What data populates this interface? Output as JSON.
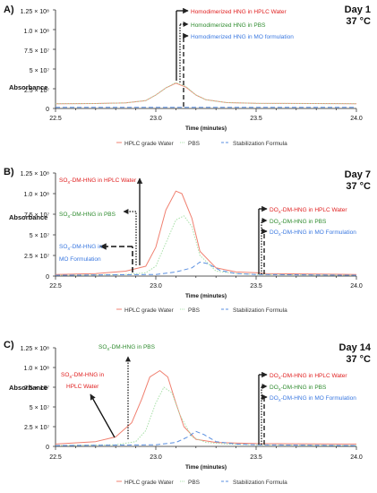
{
  "figure": {
    "x_axis_label": "Time (minutes)",
    "y_axis_label": "Absorbance",
    "legend_items": [
      {
        "label": "HPLC grade Water",
        "color": "#f08070",
        "dash": "solid"
      },
      {
        "label": "PBS",
        "color": "#a8e0a8",
        "dash": "dotted"
      },
      {
        "label": "Stabilization Formula",
        "color": "#5a8fe0",
        "dash": "dashed"
      }
    ]
  },
  "chart_data": [
    {
      "type": "line",
      "panel_label": "A)",
      "day_label": "Day 1",
      "temp_label": "37 °C",
      "xlabel": "Time (minutes)",
      "ylabel": "Absorbance",
      "xlim": [
        22.5,
        24.0
      ],
      "ylim": [
        0,
        125000000
      ],
      "x_ticks": [
        "22.5",
        "23.0",
        "23.5",
        "24.0"
      ],
      "y_ticks": [
        {
          "value": 0,
          "label": "0"
        },
        {
          "value": 25000000,
          "label": "2.5 × 10⁷"
        },
        {
          "value": 50000000,
          "label": "5 × 10⁷"
        },
        {
          "value": 75000000,
          "label": "7.5 × 10⁷"
        },
        {
          "value": 100000000,
          "label": "1.0 × 10⁸"
        },
        {
          "value": 125000000,
          "label": "1.25 × 10⁸"
        }
      ],
      "series": [
        {
          "name": "HPLC grade Water",
          "color": "#f08070",
          "dash": "solid",
          "x": [
            22.5,
            22.7,
            22.85,
            22.95,
            23.0,
            23.05,
            23.1,
            23.15,
            23.2,
            23.25,
            23.35,
            23.5,
            24.0
          ],
          "y": [
            6000000,
            6200000,
            7000000,
            10000000,
            17000000,
            26000000,
            32000000,
            27000000,
            17000000,
            11000000,
            7500000,
            6500000,
            6000000
          ]
        },
        {
          "name": "PBS",
          "color": "#a8e0a8",
          "dash": "dotted",
          "x": [
            22.5,
            22.7,
            22.85,
            22.95,
            23.0,
            23.05,
            23.1,
            23.15,
            23.2,
            23.25,
            23.35,
            23.5,
            24.0
          ],
          "y": [
            6000000,
            6200000,
            7000000,
            10000000,
            17000000,
            26000000,
            33000000,
            28000000,
            17000000,
            11000000,
            7500000,
            6500000,
            6000000
          ]
        },
        {
          "name": "Stabilization Formula",
          "color": "#5a8fe0",
          "dash": "dashed",
          "x": [
            22.5,
            23.0,
            23.5,
            24.0
          ],
          "y": [
            1500000,
            1500000,
            1500000,
            1500000
          ]
        }
      ],
      "annotations": [
        {
          "text": "Homodimerized HNG in HPLC Water",
          "color": "#e02020",
          "arrow": "solid",
          "time": 23.12,
          "height": 32000000
        },
        {
          "text": "Homodimerized HNG in PBS",
          "color": "#2e8b2e",
          "arrow": "dotted",
          "time": 23.14,
          "height": 30000000
        },
        {
          "text": "Homodimerized HNG in MO formulation",
          "color": "#3a78e0",
          "arrow": "dashed",
          "time": 23.16,
          "height": 2000000
        }
      ]
    },
    {
      "type": "line",
      "panel_label": "B)",
      "day_label": "Day 7",
      "temp_label": "37 °C",
      "xlabel": "Time (minutes)",
      "ylabel": "Absorbance",
      "xlim": [
        22.5,
        24.0
      ],
      "ylim": [
        0,
        125000000
      ],
      "x_ticks": [
        "22.5",
        "23.0",
        "23.5",
        "24.0"
      ],
      "y_ticks": [
        {
          "value": 0,
          "label": "0"
        },
        {
          "value": 25000000,
          "label": "2.5 × 10⁷"
        },
        {
          "value": 50000000,
          "label": "5 × 10⁷"
        },
        {
          "value": 75000000,
          "label": "7.5 × 10⁷"
        },
        {
          "value": 100000000,
          "label": "1.0 × 10⁸"
        },
        {
          "value": 125000000,
          "label": "1.25 × 10⁸"
        }
      ],
      "series": [
        {
          "name": "HPLC grade Water",
          "color": "#f08070",
          "dash": "solid",
          "x": [
            22.5,
            22.7,
            22.85,
            22.95,
            23.0,
            23.05,
            23.1,
            23.13,
            23.18,
            23.22,
            23.3,
            23.4,
            23.5,
            23.55,
            24.0
          ],
          "y": [
            2000000,
            3000000,
            6000000,
            12000000,
            35000000,
            80000000,
            103000000,
            100000000,
            70000000,
            30000000,
            10000000,
            5000000,
            4000000,
            3000000,
            2000000
          ]
        },
        {
          "name": "PBS",
          "color": "#a8e0a8",
          "dash": "dotted",
          "x": [
            22.5,
            22.85,
            22.95,
            23.0,
            23.05,
            23.1,
            23.14,
            23.18,
            23.22,
            23.3,
            23.4,
            23.5,
            24.0
          ],
          "y": [
            1000000,
            2000000,
            4000000,
            12000000,
            40000000,
            68000000,
            73000000,
            60000000,
            25000000,
            6000000,
            3000000,
            2000000,
            1000000
          ]
        },
        {
          "name": "Stabilization Formula",
          "color": "#5a8fe0",
          "dash": "dashed",
          "x": [
            22.5,
            23.0,
            23.1,
            23.18,
            23.22,
            23.26,
            23.32,
            23.4,
            23.5,
            24.0
          ],
          "y": [
            1000000,
            2000000,
            5000000,
            10000000,
            17000000,
            15000000,
            7000000,
            3000000,
            2000000,
            1000000
          ]
        }
      ],
      "annotations": [
        {
          "text": "SOx-DM-HNG in HPLC Water",
          "color": "#e02020",
          "arrow": "solid",
          "time": 22.97,
          "height": 12000000
        },
        {
          "text": "SOx-DM-HNG in PBS",
          "color": "#2e8b2e",
          "arrow": "dotted",
          "time": 22.95,
          "height": 12000000
        },
        {
          "text": "SOx-DM-HNG in MO Formulation",
          "color": "#3a78e0",
          "arrow": "dashed",
          "time": 22.92,
          "height": 2000000
        },
        {
          "text": "DOx-DM-HNG in HPLC Water",
          "color": "#e02020",
          "arrow": "solid",
          "time": 23.53,
          "height": 4000000
        },
        {
          "text": "DOx-DM-HNG in PBS",
          "color": "#2e8b2e",
          "arrow": "dotted",
          "time": 23.54,
          "height": 2000000
        },
        {
          "text": "DOx-DM-HNG in MO Formulation",
          "color": "#3a78e0",
          "arrow": "dashed",
          "time": 23.55,
          "height": 2000000
        }
      ]
    },
    {
      "type": "line",
      "panel_label": "C)",
      "day_label": "Day 14",
      "temp_label": "37 °C",
      "xlabel": "Time (minutes)",
      "ylabel": "Absorbance",
      "xlim": [
        22.5,
        24.0
      ],
      "ylim": [
        0,
        125000000
      ],
      "x_ticks": [
        "22.5",
        "23.0",
        "23.5",
        "24.0"
      ],
      "y_ticks": [
        {
          "value": 0,
          "label": "0"
        },
        {
          "value": 25000000,
          "label": "2.5 × 10⁷"
        },
        {
          "value": 50000000,
          "label": "5 × 10⁷"
        },
        {
          "value": 75000000,
          "label": "7.5 × 10⁷"
        },
        {
          "value": 100000000,
          "label": "1.0 × 10⁸"
        },
        {
          "value": 125000000,
          "label": "1.25 × 10⁸"
        }
      ],
      "series": [
        {
          "name": "HPLC grade Water",
          "color": "#f08070",
          "dash": "solid",
          "x": [
            22.5,
            22.7,
            22.8,
            22.88,
            22.93,
            22.97,
            23.02,
            23.06,
            23.1,
            23.14,
            23.2,
            23.3,
            23.5,
            24.0
          ],
          "y": [
            3000000,
            6000000,
            12000000,
            30000000,
            60000000,
            88000000,
            96000000,
            88000000,
            55000000,
            25000000,
            9000000,
            5000000,
            3500000,
            3000000
          ]
        },
        {
          "name": "PBS",
          "color": "#a8e0a8",
          "dash": "dotted",
          "x": [
            22.5,
            22.8,
            22.9,
            22.95,
            23.0,
            23.04,
            23.08,
            23.12,
            23.18,
            23.25,
            23.35,
            23.5,
            24.0
          ],
          "y": [
            1000000,
            2000000,
            6000000,
            20000000,
            55000000,
            75000000,
            68000000,
            40000000,
            12000000,
            5000000,
            3000000,
            2000000,
            1000000
          ]
        },
        {
          "name": "Stabilization Formula",
          "color": "#5a8fe0",
          "dash": "dashed",
          "x": [
            22.5,
            23.0,
            23.1,
            23.16,
            23.2,
            23.24,
            23.3,
            23.4,
            23.5,
            24.0
          ],
          "y": [
            1000000,
            2000000,
            5000000,
            12000000,
            19000000,
            15000000,
            6000000,
            3000000,
            2000000,
            1000000
          ]
        }
      ],
      "annotations": [
        {
          "text": "SOx-DM-HNG in HPLC Water",
          "color": "#e02020",
          "arrow": "solid",
          "time": 22.8,
          "height": 12000000
        },
        {
          "text": "SOx-DM-HNG in PBS",
          "color": "#2e8b2e",
          "arrow": "dotted",
          "time": 22.87,
          "height": 10000000
        },
        {
          "text": "DOx-DM-HNG in HPLC Water",
          "color": "#e02020",
          "arrow": "solid",
          "time": 23.53,
          "height": 4000000
        },
        {
          "text": "DOx-DM-HNG in PBS",
          "color": "#2e8b2e",
          "arrow": "dotted",
          "time": 23.54,
          "height": 2000000
        },
        {
          "text": "DOx-DM-HNG in MO Formulation",
          "color": "#3a78e0",
          "arrow": "dashed",
          "time": 23.55,
          "height": 2000000
        }
      ]
    }
  ]
}
